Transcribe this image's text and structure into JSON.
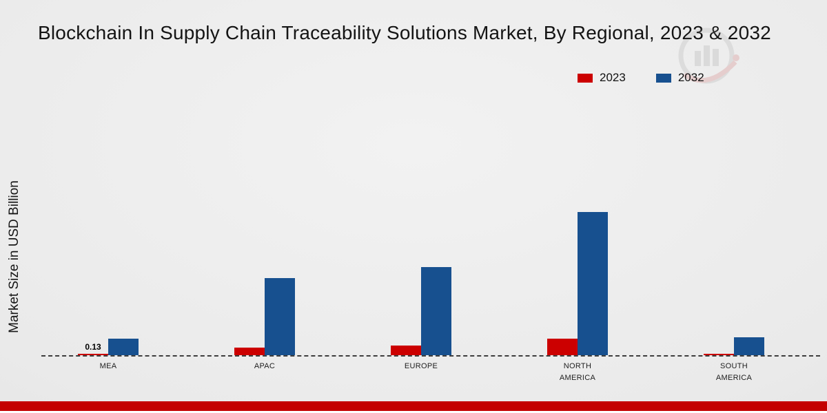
{
  "colors": {
    "series_2023": "#cc0000",
    "series_2032": "#17508f",
    "bottom_strip": "#c40000",
    "background": "#eaeaea"
  },
  "chart_data": {
    "type": "bar",
    "title": "Blockchain In Supply Chain Traceability Solutions Market, By Regional, 2023 & 2032",
    "xlabel": "",
    "ylabel": "Market Size in USD Billion",
    "categories": [
      "MEA",
      "APAC",
      "EUROPE",
      "NORTH AMERICA",
      "SOUTH AMERICA"
    ],
    "series": [
      {
        "name": "2023",
        "color": "#cc0000",
        "values": [
          0.13,
          0.7,
          0.9,
          1.5,
          0.1
        ]
      },
      {
        "name": "2032",
        "color": "#17508f",
        "values": [
          1.5,
          7.0,
          8.0,
          13.0,
          1.6
        ]
      }
    ],
    "bar_labels": {
      "0,0": "0.13"
    },
    "legend_position": "top-right",
    "baseline_style": "dashed",
    "ylim": [
      0,
      14
    ],
    "grid": false
  }
}
